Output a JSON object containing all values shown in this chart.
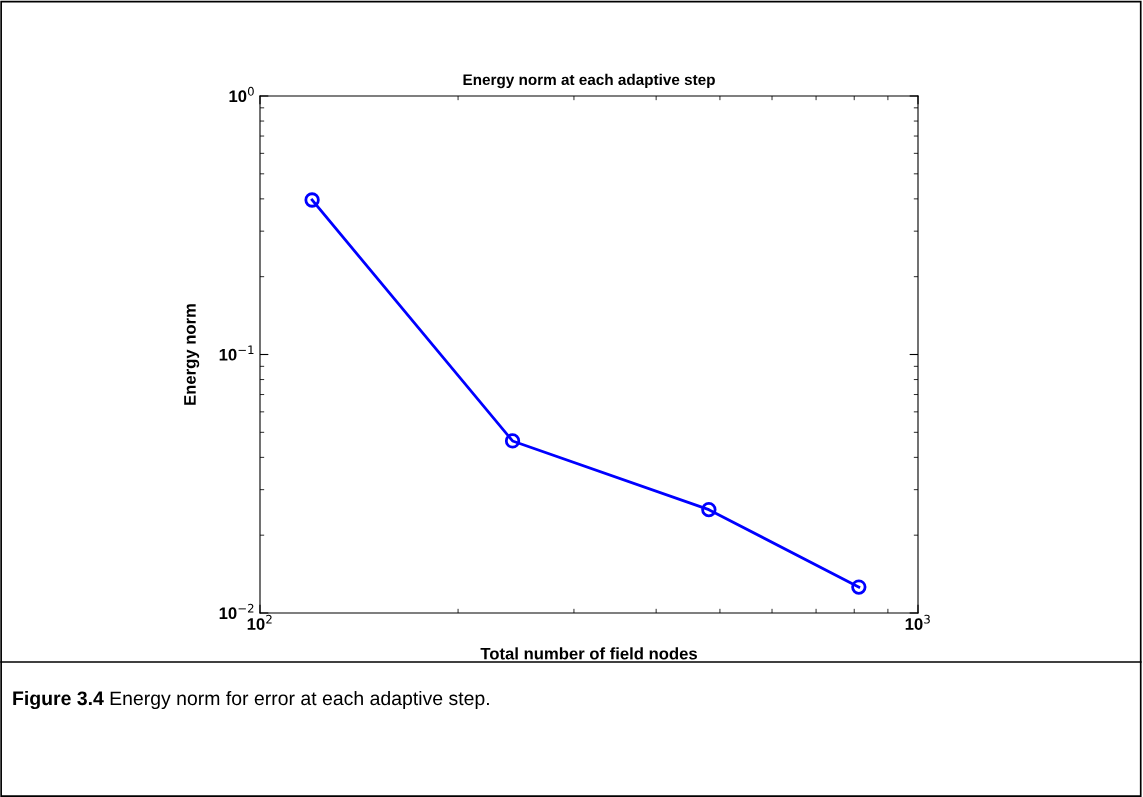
{
  "chart_data": {
    "type": "line",
    "title": "Energy norm at each adaptive step",
    "xlabel": "Total number of field nodes",
    "ylabel": "Energy norm",
    "x": [
      120,
      242,
      481,
      813
    ],
    "series": [
      {
        "color": "#0000ff",
        "values": [
          0.396,
          0.0463,
          0.0251,
          0.0126
        ]
      }
    ],
    "log": "xy",
    "xlim": [
      100,
      1000
    ],
    "ylim": [
      0.01,
      1
    ],
    "xticks": [
      {
        "value": 100,
        "label": "10$^{2}$"
      },
      {
        "value": 1000,
        "label": "10$^{3}$"
      }
    ],
    "yticks": [
      {
        "value": 0.01,
        "label": "10$^{−2}$"
      },
      {
        "value": 0.1,
        "label": "10$^{−1}$"
      },
      {
        "value": 1,
        "label": "10$^{0}$"
      }
    ],
    "marker": "circle",
    "line_style": "solid",
    "grid": false,
    "legend": false,
    "annotations": [
      "Figure 3.4",
      "Energy norm for error at each adaptive step."
    ]
  }
}
